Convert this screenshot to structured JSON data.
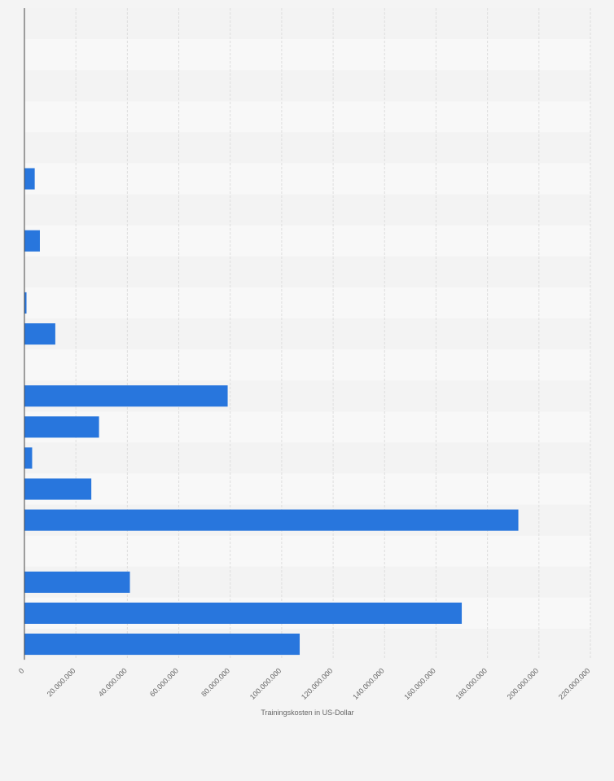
{
  "chart_data": {
    "type": "bar",
    "orientation": "horizontal",
    "xlabel": "Trainingskosten in US-Dollar",
    "xlim": [
      0,
      220000000
    ],
    "xticks": [
      0,
      20000000,
      40000000,
      60000000,
      80000000,
      100000000,
      120000000,
      140000000,
      160000000,
      180000000,
      200000000,
      220000000
    ],
    "xtick_labels": [
      "0",
      "20.000.000",
      "40.000.000",
      "60.000.000",
      "80.000.000",
      "100.000.000",
      "120.000.000",
      "140.000.000",
      "160.000.000",
      "180.000.000",
      "200.000.000",
      "220.000.000"
    ],
    "values": [
      0,
      0,
      0,
      0,
      0,
      4000000,
      0,
      6000000,
      0,
      800000,
      12000000,
      0,
      79000000,
      29000000,
      3000000,
      26000000,
      192000000,
      0,
      41000000,
      170000000,
      107000000
    ],
    "grid": true,
    "colors": {
      "bar": "#2876dd",
      "band_dark": "#f3f3f3",
      "band_light": "#f8f8f8",
      "grid": "#dddddd",
      "axis": "#444444"
    }
  }
}
